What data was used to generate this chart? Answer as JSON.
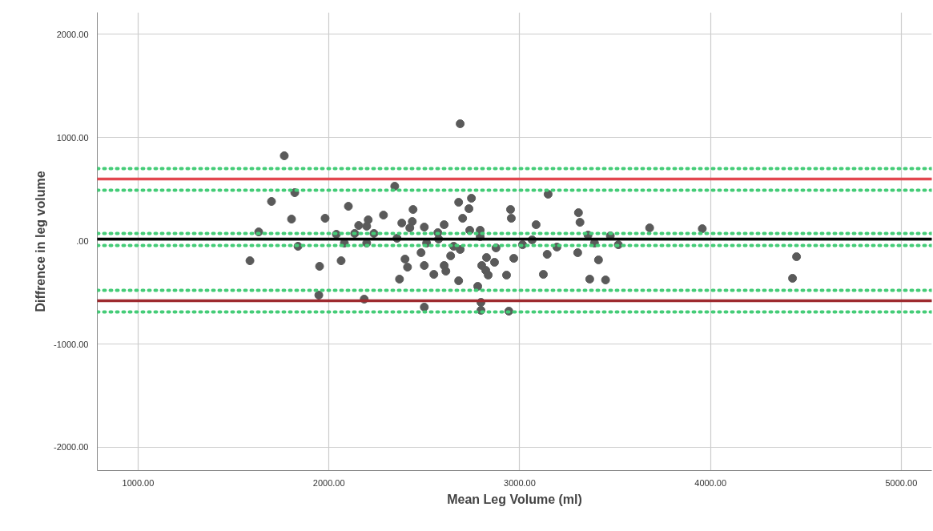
{
  "chart_data": {
    "type": "scatter",
    "xlabel": "Mean Leg Volume (ml)",
    "ylabel": "Diffrence in leg volume",
    "xlim": [
      786,
      5160
    ],
    "ylim": [
      -2225,
      2210
    ],
    "xticks": [
      {
        "value": 1000,
        "label": "1000.00"
      },
      {
        "value": 2000,
        "label": "2000.00"
      },
      {
        "value": 3000,
        "label": "3000.00"
      },
      {
        "value": 4000,
        "label": "4000.00"
      },
      {
        "value": 5000,
        "label": "5000.00"
      }
    ],
    "yticks": [
      {
        "value": -2000,
        "label": "-2000.00"
      },
      {
        "value": -1000,
        "label": "-1000.00"
      },
      {
        "value": 0,
        "label": ".00"
      },
      {
        "value": 1000,
        "label": "1000.00"
      },
      {
        "value": 2000,
        "label": "2000.00"
      }
    ],
    "grid": true,
    "marker": "circle",
    "series": [
      {
        "color": "#5a5a5a",
        "x": [
          1766,
          1821,
          1699,
          1804,
          1980,
          2102,
          1632,
          1838,
          1586,
          1951,
          2064,
          1947,
          2039,
          2156,
          2206,
          2198,
          2135,
          2236,
          2286,
          2345,
          2382,
          2441,
          2437,
          2424,
          2500,
          2604,
          2571,
          2357,
          2575,
          2483,
          2399,
          2412,
          2500,
          2550,
          2604,
          2613,
          2370,
          2185,
          2500,
          2081,
          2198,
          2512,
          2688,
          2680,
          2747,
          2734,
          2701,
          2738,
          2793,
          2793,
          2654,
          2688,
          2876,
          2638,
          2680,
          2826,
          2801,
          2822,
          2835,
          2868,
          2969,
          2931,
          2780,
          2797,
          2797,
          2943,
          2952,
          2956,
          3015,
          3065,
          3086,
          3149,
          3144,
          3195,
          3124,
          3308,
          3316,
          3304,
          3358,
          3392,
          3413,
          3367,
          3450,
          3475,
          3517,
          3681,
          3957,
          4451,
          4430
        ],
        "values": [
          822,
          465,
          380,
          209,
          217,
          333,
          85,
          -54,
          -194,
          -248,
          -194,
          -527,
          62,
          147,
          202,
          140,
          70,
          70,
          248,
          527,
          171,
          302,
          186,
          124,
          132,
          155,
          78,
          23,
          16,
          -116,
          -178,
          -256,
          -240,
          -326,
          -240,
          -295,
          -372,
          -566,
          -643,
          -23,
          -23,
          -23,
          1132,
          372,
          411,
          310,
          217,
          101,
          101,
          39,
          -54,
          -85,
          -70,
          -147,
          -388,
          -163,
          -240,
          -287,
          -333,
          -209,
          -171,
          -333,
          -442,
          -597,
          -674,
          -682,
          302,
          217,
          -39,
          8,
          155,
          450,
          -132,
          -62,
          -326,
          271,
          178,
          -116,
          54,
          -23,
          -186,
          -372,
          -380,
          47,
          -39,
          124,
          116,
          -155,
          -364
        ]
      }
    ],
    "ref_lines": [
      {
        "axis": "y",
        "value": 698,
        "label": null,
        "color": "#44cc77",
        "line_style": "dotted"
      },
      {
        "axis": "y",
        "value": 488,
        "label": null,
        "color": "#44cc77",
        "line_style": "dotted"
      },
      {
        "axis": "y",
        "value": 70,
        "label": null,
        "color": "#44cc77",
        "line_style": "dotted"
      },
      {
        "axis": "y",
        "value": -47,
        "label": null,
        "color": "#44cc77",
        "line_style": "dotted"
      },
      {
        "axis": "y",
        "value": -481,
        "label": null,
        "color": "#44cc77",
        "line_style": "dotted"
      },
      {
        "axis": "y",
        "value": -690,
        "label": null,
        "color": "#44cc77",
        "line_style": "dotted"
      },
      {
        "axis": "y",
        "value": 597,
        "label": null,
        "color": "#e2474f",
        "line_style": "solid"
      },
      {
        "axis": "y",
        "value": 15,
        "label": null,
        "color": "#000000",
        "line_style": "solid"
      },
      {
        "axis": "y",
        "value": -581,
        "label": null,
        "color": "#9e2a2f",
        "line_style": "solid"
      }
    ]
  }
}
